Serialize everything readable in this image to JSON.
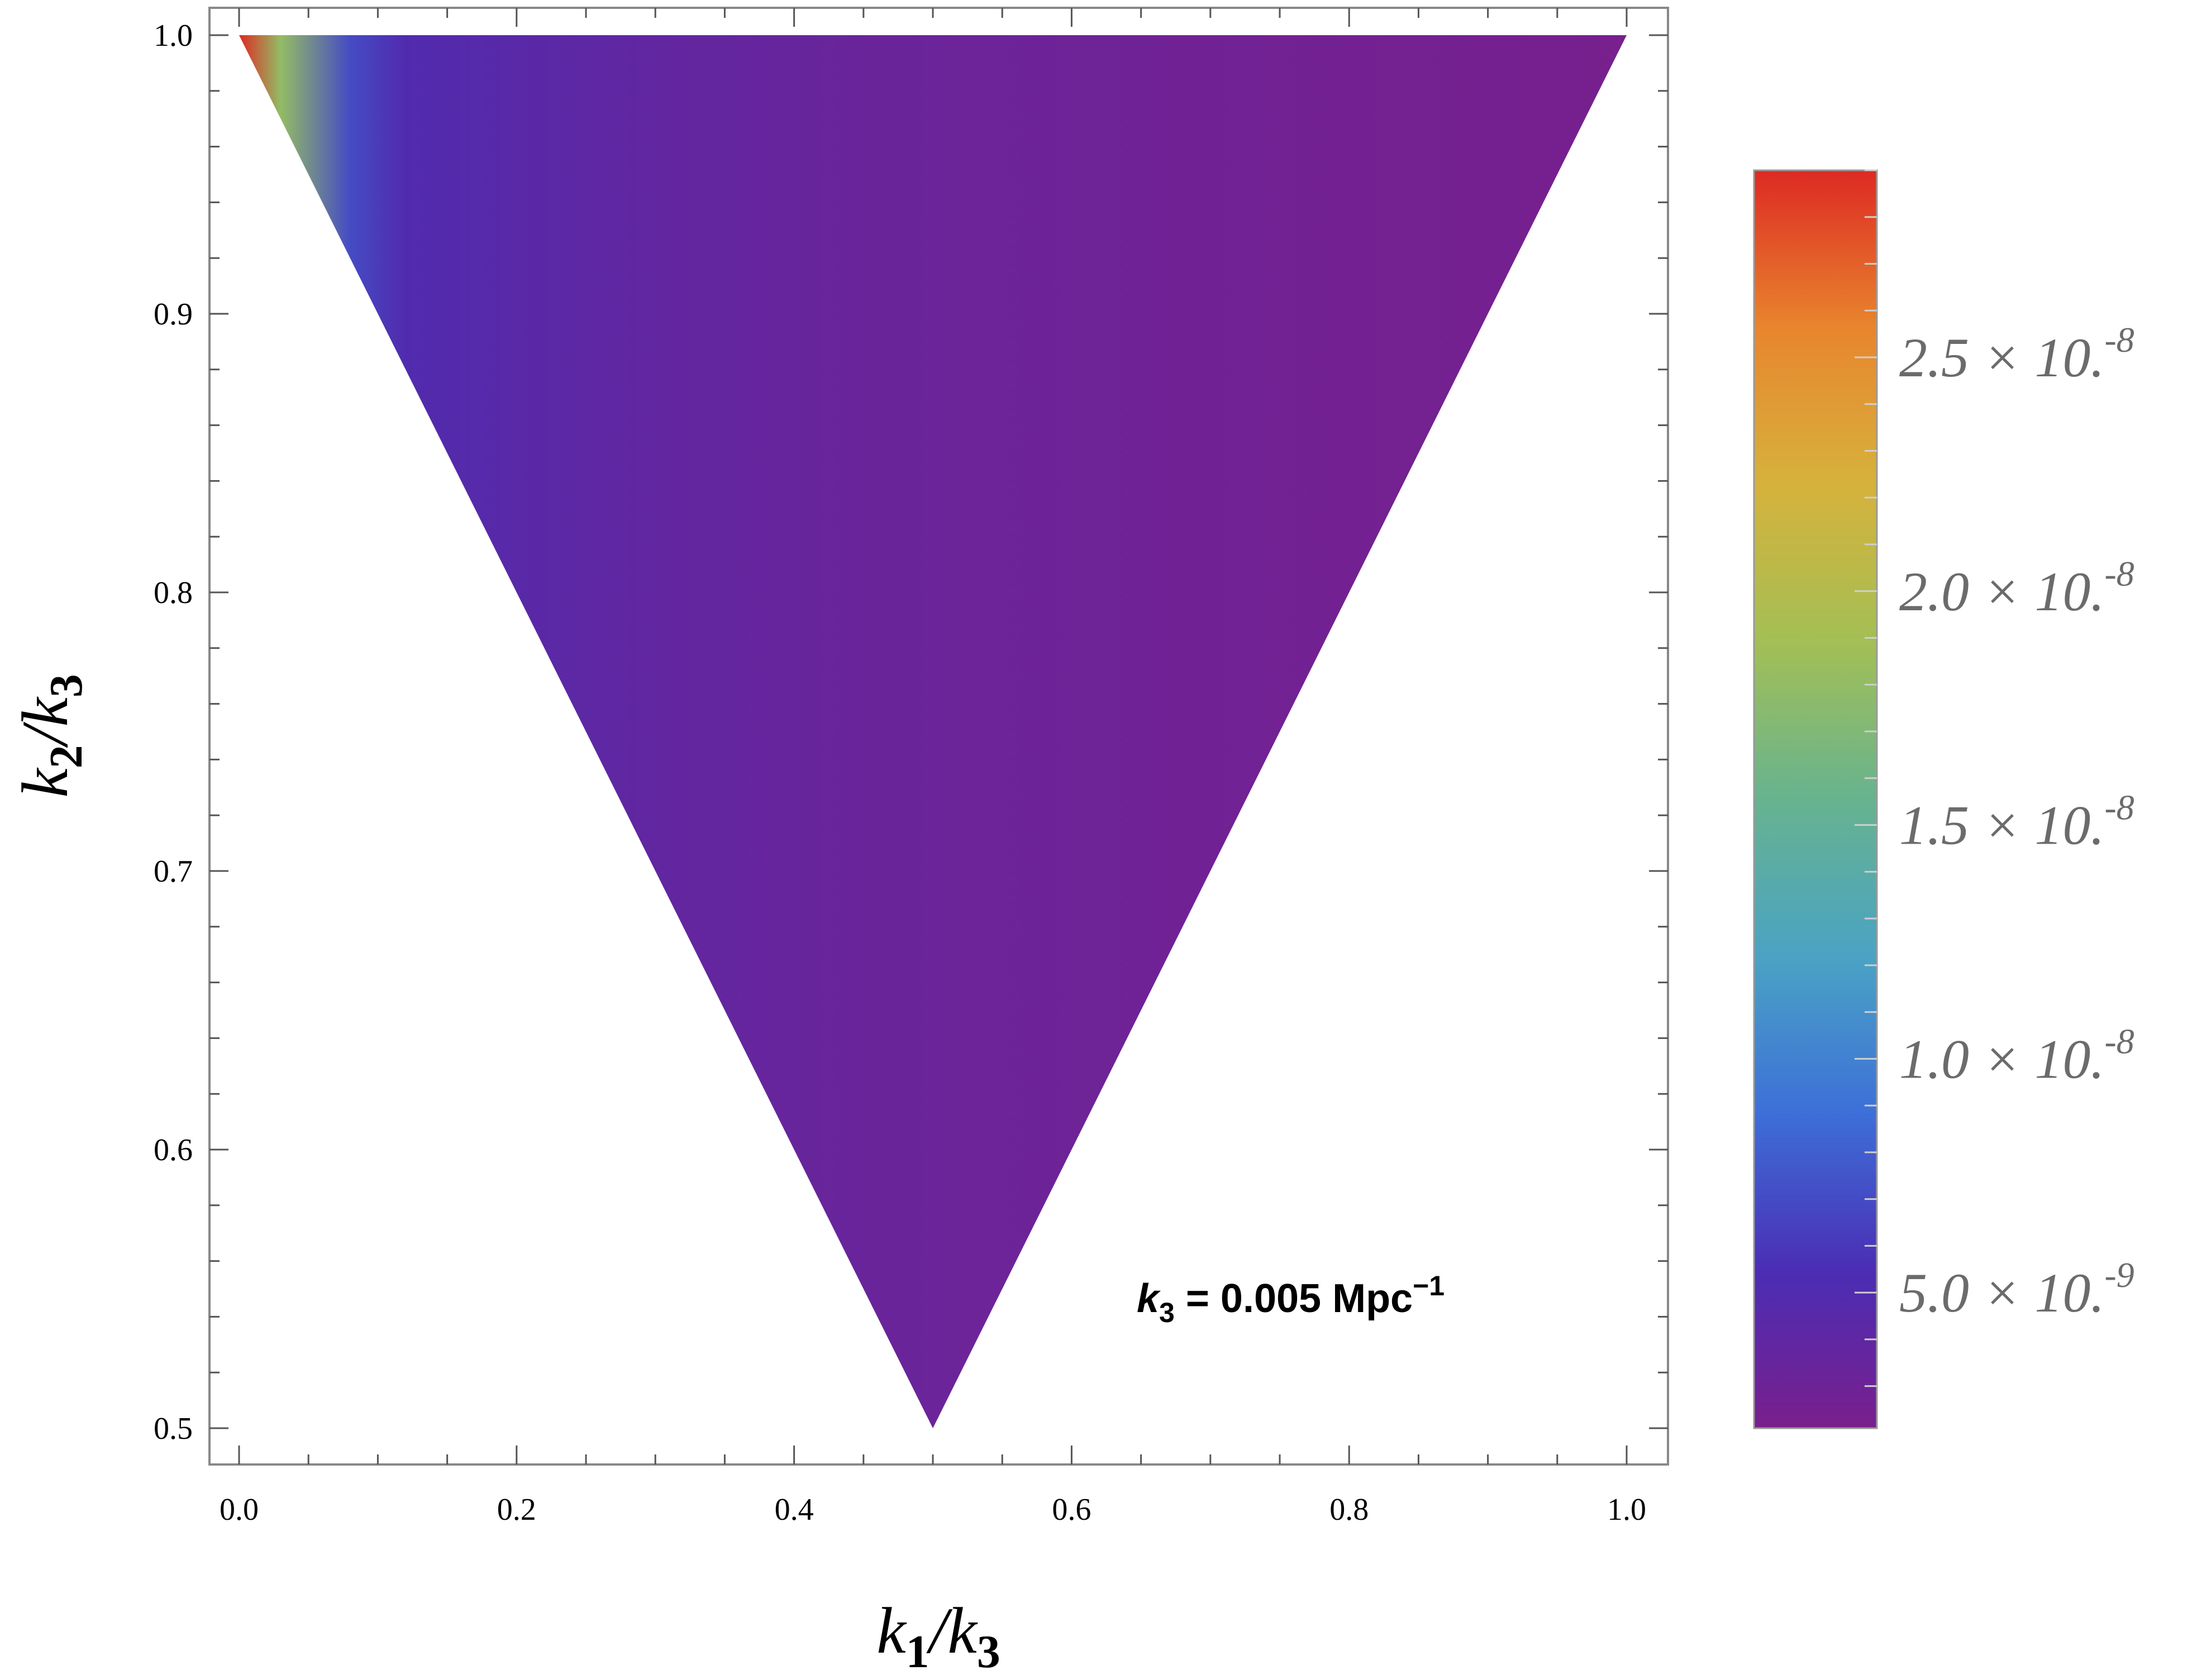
{
  "chart_data": {
    "type": "heatmap",
    "title": "",
    "xlabel": "k1/k3",
    "ylabel": "k2/k3",
    "xlim": [
      0.0,
      1.0
    ],
    "ylim": [
      0.5,
      1.0
    ],
    "x_ticks": [
      "0.0",
      "0.2",
      "0.4",
      "0.6",
      "0.8",
      "1.0"
    ],
    "y_ticks": [
      "0.5",
      "0.6",
      "0.7",
      "0.8",
      "0.9",
      "1.0"
    ],
    "region": {
      "shape": "triangle",
      "vertices": [
        [
          0.0,
          1.0
        ],
        [
          1.0,
          1.0
        ],
        [
          0.5,
          0.5
        ]
      ]
    },
    "approx_value_profile": [
      {
        "x": 0.0,
        "value": 2.9e-08
      },
      {
        "x": 0.03,
        "value": 1.8e-08
      },
      {
        "x": 0.08,
        "value": 7e-09
      },
      {
        "x": 0.12,
        "value": 5e-09
      },
      {
        "x": 0.3,
        "value": 3.8e-09
      },
      {
        "x": 0.5,
        "value": 3.2e-09
      },
      {
        "x": 0.8,
        "value": 2.6e-09
      },
      {
        "x": 1.0,
        "value": 2.3e-09
      }
    ],
    "colorbar": {
      "range": [
        2.1e-09,
        2.9e-08
      ],
      "ticks": [
        {
          "value": 5e-09,
          "mantissa": "5.0",
          "exponent": "-9"
        },
        {
          "value": 1e-08,
          "mantissa": "1.0",
          "exponent": "-8"
        },
        {
          "value": 1.5e-08,
          "mantissa": "1.5",
          "exponent": "-8"
        },
        {
          "value": 2e-08,
          "mantissa": "2.0",
          "exponent": "-8"
        },
        {
          "value": 2.5e-08,
          "mantissa": "2.5",
          "exponent": "-8"
        }
      ],
      "label_base": "× 10.",
      "colors": [
        "#7a1f8c",
        "#4b2db4",
        "#3d6fd8",
        "#4aa3c4",
        "#67b38f",
        "#a3bf55",
        "#d6b23c",
        "#e8852e",
        "#dd2a23"
      ]
    },
    "annotation": {
      "symbol": "k",
      "subscript": "3",
      "text": " = 0.005 Mpc",
      "superscript": "−1"
    }
  }
}
